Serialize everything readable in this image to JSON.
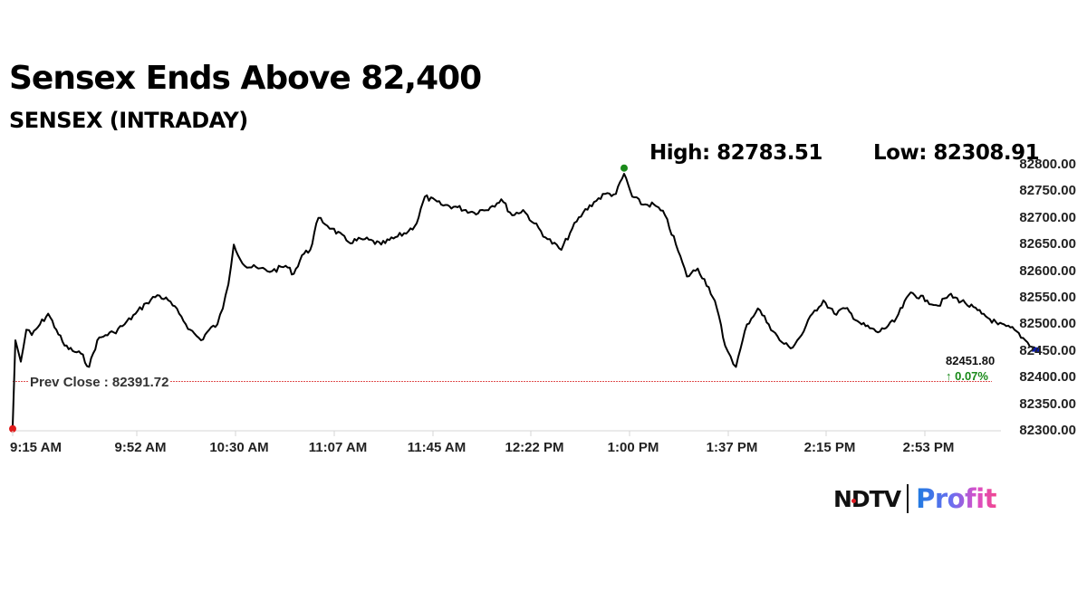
{
  "header": {
    "title": "Sensex Ends Above 82,400",
    "subtitle": "SENSEX (INTRADAY)"
  },
  "stats": {
    "high": "High: 82783.51",
    "low": "Low: 82308.91"
  },
  "annotations": {
    "prev_close": "Prev Close : 82391.72",
    "last_value": "82451.80",
    "change": "↑ 0.07%"
  },
  "logo": {
    "brand": "NDTV",
    "product": "Profit"
  },
  "colors": {
    "line": "#000000",
    "prev_close_line": "#e05050",
    "high_marker": "#1a8a1a",
    "low_marker": "#e01b1b",
    "last_marker": "#0a1ab0",
    "change_up": "#1a8a1a"
  },
  "chart_data": {
    "type": "line",
    "title": "Sensex Ends Above 82,400",
    "subtitle": "SENSEX (INTRADAY)",
    "xlabel": "",
    "ylabel": "",
    "x_ticks": [
      "9:15 AM",
      "9:52 AM",
      "10:30 AM",
      "11:07 AM",
      "11:45 AM",
      "12:22 PM",
      "1:00 PM",
      "1:37 PM",
      "2:15 PM",
      "2:53 PM"
    ],
    "y_ticks": [
      "82800.00",
      "82750.00",
      "82700.00",
      "82650.00",
      "82600.00",
      "82550.00",
      "82500.00",
      "82450.00",
      "82400.00",
      "82350.00",
      "82300.00"
    ],
    "ylim": [
      82300,
      82800
    ],
    "grid": false,
    "legend": null,
    "high": 82783.51,
    "low": 82308.91,
    "prev_close": 82391.72,
    "last": 82451.8,
    "change_pct": 0.07,
    "series": [
      {
        "name": "SENSEX",
        "x": [
          "9:15",
          "9:16",
          "9:18",
          "9:20",
          "9:22",
          "9:25",
          "9:28",
          "9:31",
          "9:34",
          "9:37",
          "9:40",
          "9:43",
          "9:46",
          "9:49",
          "9:52",
          "9:56",
          "10:00",
          "10:04",
          "10:08",
          "10:12",
          "10:16",
          "10:20",
          "10:24",
          "10:27",
          "10:30",
          "10:32",
          "10:34",
          "10:36",
          "10:40",
          "10:45",
          "10:50",
          "10:55",
          "10:58",
          "11:01",
          "11:04",
          "11:07",
          "11:12",
          "11:18",
          "11:24",
          "11:30",
          "11:36",
          "11:40",
          "11:43",
          "11:46",
          "11:52",
          "11:58",
          "12:04",
          "12:10",
          "12:14",
          "12:18",
          "12:22",
          "12:26",
          "12:31",
          "12:36",
          "12:40",
          "12:44",
          "12:48",
          "12:52",
          "12:56",
          "12:59",
          "13:02",
          "13:06",
          "13:10",
          "13:14",
          "13:18",
          "13:22",
          "13:26",
          "13:30",
          "13:33",
          "13:36",
          "13:38",
          "13:40",
          "13:44",
          "13:48",
          "13:52",
          "13:56",
          "14:00",
          "14:04",
          "14:08",
          "14:12",
          "14:16",
          "14:20",
          "14:26",
          "14:32",
          "14:38",
          "14:44",
          "14:50",
          "14:54",
          "14:58",
          "15:04",
          "15:10",
          "15:16",
          "15:22",
          "15:26",
          "15:30"
        ],
        "values": [
          82309,
          82470,
          82430,
          82490,
          82480,
          82500,
          82520,
          82490,
          82460,
          82450,
          82445,
          82420,
          82470,
          82480,
          82485,
          82500,
          82520,
          82540,
          82555,
          82545,
          82520,
          82490,
          82470,
          82490,
          82500,
          82530,
          82575,
          82650,
          82610,
          82605,
          82600,
          82610,
          82595,
          82630,
          82640,
          82700,
          82680,
          82655,
          82660,
          82650,
          82665,
          82675,
          82690,
          82740,
          82725,
          82720,
          82710,
          82720,
          82735,
          82705,
          82715,
          82690,
          82660,
          82640,
          82680,
          82710,
          82730,
          82745,
          82745,
          82783,
          82740,
          82725,
          82725,
          82705,
          82650,
          82590,
          82605,
          82570,
          82530,
          82460,
          82440,
          82420,
          82500,
          82530,
          82500,
          82470,
          82455,
          82480,
          82520,
          82545,
          82520,
          82530,
          82500,
          82485,
          82505,
          82560,
          82545,
          82535,
          82555,
          82540,
          82520,
          82500,
          82490,
          82470,
          82452
        ]
      }
    ]
  }
}
